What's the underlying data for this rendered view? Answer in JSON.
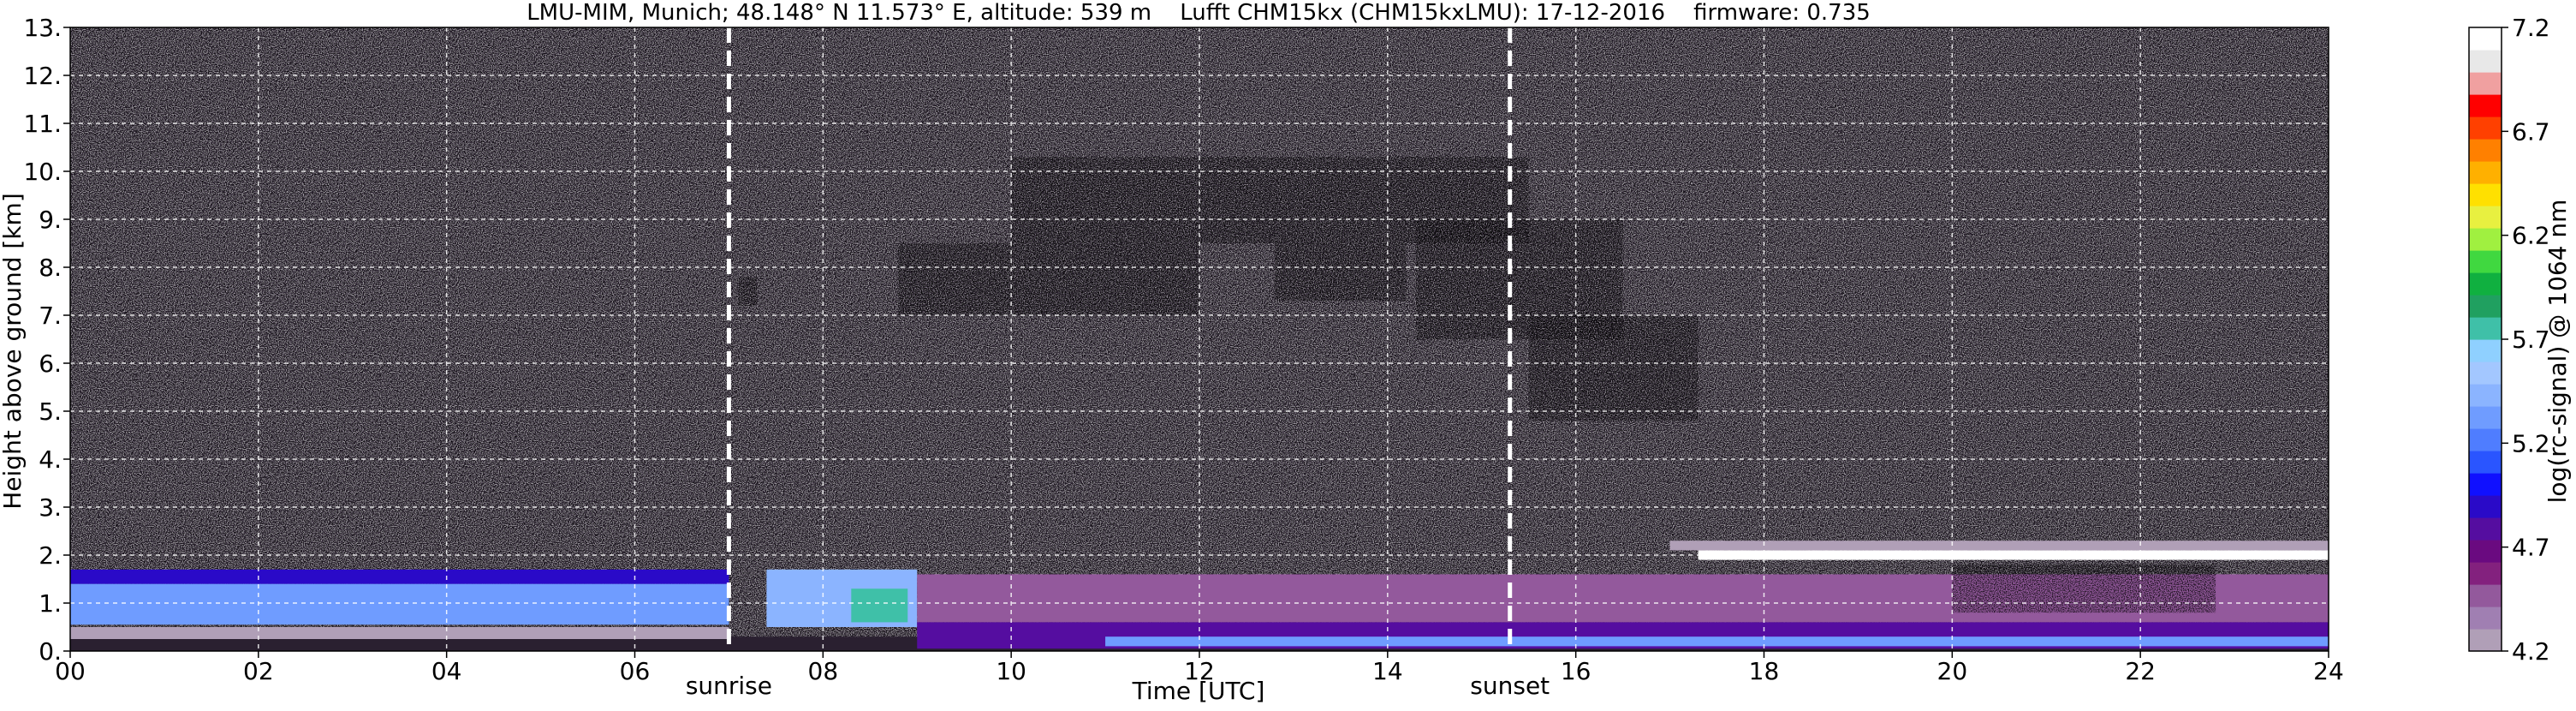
{
  "chart_data": {
    "type": "heatmap",
    "title": "LMU-MIM, Munich; 48.148° N 11.573° E, altitude: 539 m    Lufft CHM15kx (CHM15kxLMU): 17-12-2016    firmware: 0.735",
    "xlabel": "Time [UTC]",
    "ylabel": "Height above ground [km]",
    "xlim": [
      0,
      24
    ],
    "ylim": [
      0,
      13
    ],
    "x_ticks": [
      "00",
      "02",
      "04",
      "06",
      "08",
      "10",
      "12",
      "14",
      "16",
      "18",
      "20",
      "22",
      "24"
    ],
    "x_tick_values": [
      0,
      2,
      4,
      6,
      8,
      10,
      12,
      14,
      16,
      18,
      20,
      22,
      24
    ],
    "y_ticks": [
      "0.",
      "1.",
      "2.",
      "3.",
      "4.",
      "5.",
      "6.",
      "7.",
      "8.",
      "9.",
      "10.",
      "11.",
      "12.",
      "13."
    ],
    "y_tick_values": [
      0,
      1,
      2,
      3,
      4,
      5,
      6,
      7,
      8,
      9,
      10,
      11,
      12,
      13
    ],
    "grid": true,
    "annotations": [
      {
        "label": "sunrise",
        "time": 7.0
      },
      {
        "label": "sunset",
        "time": 15.3
      }
    ],
    "colorbar": {
      "label": "log(rc-signal) @ 1064 nm",
      "min": 4.2,
      "max": 7.2,
      "tick_labels": [
        "4.2",
        "4.7",
        "5.2",
        "5.7",
        "6.2",
        "6.7",
        "7.2"
      ],
      "tick_values": [
        4.2,
        4.7,
        5.2,
        5.7,
        6.2,
        6.7,
        7.2
      ],
      "colors": [
        "#b09fb7",
        "#a07fb2",
        "#93599c",
        "#83217e",
        "#6a0a80",
        "#550da0",
        "#2a0ac8",
        "#1010ff",
        "#2a55ff",
        "#4f7dff",
        "#6f9cff",
        "#8bb4ff",
        "#a3c7ff",
        "#8fd0ff",
        "#3fc0a8",
        "#20a060",
        "#10b040",
        "#40d840",
        "#a0f040",
        "#e8f040",
        "#ffe000",
        "#ffb000",
        "#ff8000",
        "#ff4000",
        "#ff0000",
        "#f0a0a0",
        "#e8e8e8",
        "#ffffff"
      ]
    },
    "features": [
      {
        "name": "noise-background",
        "t_start": 0,
        "t_end": 24,
        "h_bottom": 0.3,
        "h_top": 13,
        "value": 4.9
      },
      {
        "name": "boundary-layer-blue",
        "t_start": 0,
        "t_end": 7.0,
        "h_bottom": 0.55,
        "h_top": 1.4,
        "value": 5.3
      },
      {
        "name": "boundary-layer-magenta",
        "t_start": 0,
        "t_end": 7.0,
        "h_bottom": 1.4,
        "h_top": 1.7,
        "value": 4.9
      },
      {
        "name": "near-surface-black",
        "t_start": 0,
        "t_end": 7.0,
        "h_bottom": 0.25,
        "h_top": 0.5,
        "value": 4.2
      },
      {
        "name": "morning-aerosol-blue",
        "t_start": 7.4,
        "t_end": 9.0,
        "h_bottom": 0.5,
        "h_top": 1.7,
        "value": 5.4
      },
      {
        "name": "morning-aerosol-green",
        "t_start": 8.3,
        "t_end": 8.9,
        "h_bottom": 0.6,
        "h_top": 1.3,
        "value": 5.7
      },
      {
        "name": "residual-layer-pink",
        "t_start": 9.0,
        "t_end": 24,
        "h_bottom": 0.6,
        "h_top": 1.6,
        "value": 4.5
      },
      {
        "name": "surface-layer-purple",
        "t_start": 9.0,
        "t_end": 24,
        "h_bottom": 0.05,
        "h_top": 0.6,
        "value": 4.8
      },
      {
        "name": "surface-layer-blue",
        "t_start": 11.0,
        "t_end": 24,
        "h_bottom": 0.1,
        "h_top": 0.3,
        "value": 5.3
      },
      {
        "name": "cirrus-07h",
        "t_start": 7.1,
        "t_end": 7.3,
        "h_bottom": 7.2,
        "h_top": 7.8,
        "value": 6.0
      },
      {
        "name": "cirrus-09h",
        "t_start": 8.8,
        "t_end": 12.0,
        "h_bottom": 7.0,
        "h_top": 8.5,
        "value": 6.1
      },
      {
        "name": "cirrus-13h",
        "t_start": 12.8,
        "t_end": 14.2,
        "h_bottom": 7.3,
        "h_top": 8.5,
        "value": 6.3
      },
      {
        "name": "cirrus-upper",
        "t_start": 10.0,
        "t_end": 15.5,
        "h_bottom": 8.5,
        "h_top": 10.3,
        "value": 5.4
      },
      {
        "name": "cirrus-15h",
        "t_start": 14.3,
        "t_end": 16.5,
        "h_bottom": 6.5,
        "h_top": 9.0,
        "value": 6.2
      },
      {
        "name": "cirrus-16h",
        "t_start": 15.5,
        "t_end": 17.3,
        "h_bottom": 4.8,
        "h_top": 7.0,
        "value": 6.5
      },
      {
        "name": "cloud-base-white",
        "t_start": 17.3,
        "t_end": 24,
        "h_bottom": 1.9,
        "h_top": 2.1,
        "value": 7.2
      },
      {
        "name": "above-cloud-black",
        "t_start": 17.0,
        "t_end": 24,
        "h_bottom": 2.1,
        "h_top": 2.3,
        "value": 4.2
      },
      {
        "name": "precip-virga",
        "t_start": 20.0,
        "t_end": 22.8,
        "h_bottom": 0.8,
        "h_top": 1.8,
        "value": 5.9
      }
    ]
  }
}
